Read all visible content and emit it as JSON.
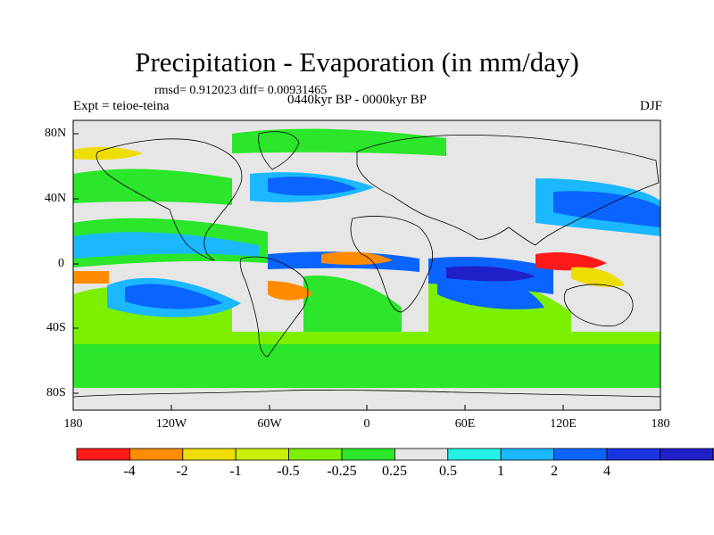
{
  "title": "Precipitation - Evaporation (in mm/day)",
  "stats": "rmsd= 0.912023 diff= 0.00931465",
  "experiment": "Expt = teioe-teina",
  "period": "0440kyr BP - 0000kyr BP",
  "season": "DJF",
  "y_axis_labels": [
    "80N",
    "40N",
    "0",
    "40S",
    "80S"
  ],
  "x_axis_labels": [
    "180",
    "120W",
    "60W",
    "0",
    "60E",
    "120E",
    "180"
  ],
  "colorbar": {
    "colors": [
      "#ff1a1a",
      "#ff8c00",
      "#eedd00",
      "#c8f000",
      "#7df000",
      "#2be62b",
      "#e6e6e6",
      "#25f0e6",
      "#1bb8ff",
      "#0a64ff",
      "#1a35e0",
      "#2020c8",
      "#8a2be2"
    ],
    "labels": [
      "-4",
      "-2",
      "-1",
      "-0.5",
      "-0.25",
      "0.25",
      "0.5",
      "1",
      "2",
      "4"
    ]
  },
  "map": {
    "background": "#e6e6e6",
    "border": "#000000"
  }
}
